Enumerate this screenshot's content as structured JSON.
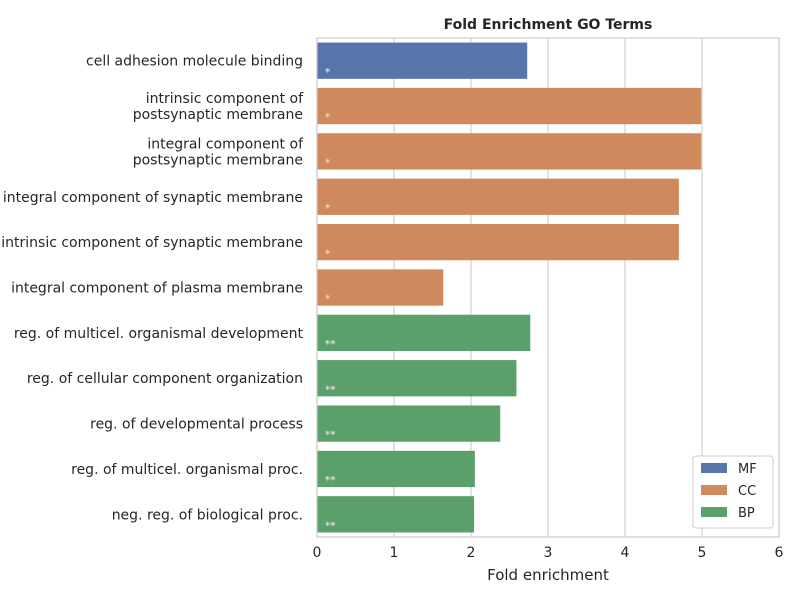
{
  "chart_data": {
    "type": "bar",
    "orientation": "horizontal",
    "title": "Fold Enrichment GO Terms",
    "xlabel": "Fold enrichment",
    "ylabel": "",
    "xlim": [
      0,
      6
    ],
    "xticks": [
      "0",
      "1",
      "2",
      "3",
      "4",
      "5",
      "6"
    ],
    "grid": true,
    "legend_position": "bottom-right",
    "categories": [
      "cell adhesion molecule binding",
      "intrinsic component of\npostsynaptic membrane",
      "integral component of\npostsynaptic membrane",
      "integral component of synaptic membrane",
      "intrinsic component of synaptic membrane",
      "integral component of plasma membrane",
      "reg. of multicel. organismal development",
      "reg. of cellular component organization",
      "reg. of developmental process",
      "reg. of multicel. organismal proc.",
      "neg. reg. of biological proc."
    ],
    "values": [
      2.73,
      4.99,
      4.99,
      4.7,
      4.7,
      1.64,
      2.77,
      2.59,
      2.38,
      2.05,
      2.04
    ],
    "groups": [
      "MF",
      "CC",
      "CC",
      "CC",
      "CC",
      "CC",
      "BP",
      "BP",
      "BP",
      "BP",
      "BP"
    ],
    "annotations": [
      "*",
      "*",
      "*",
      "*",
      "*",
      "*",
      "**",
      "**",
      "**",
      "**",
      "**"
    ],
    "series": [
      {
        "name": "MF",
        "color": "#5875ab"
      },
      {
        "name": "CC",
        "color": "#d0895d"
      },
      {
        "name": "BP",
        "color": "#5b9f6b"
      }
    ]
  }
}
